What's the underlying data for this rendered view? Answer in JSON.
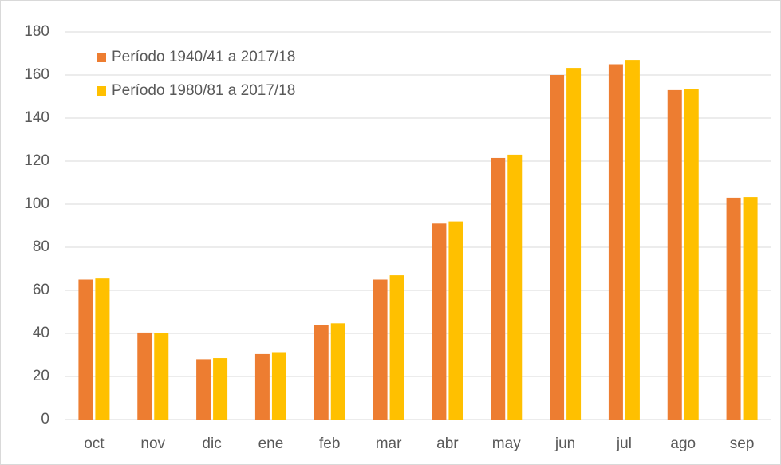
{
  "chart_data": {
    "type": "bar",
    "categories": [
      "oct",
      "nov",
      "dic",
      "ene",
      "feb",
      "mar",
      "abr",
      "may",
      "jun",
      "jul",
      "ago",
      "sep"
    ],
    "series": [
      {
        "name": "Período 1940/41 a 2017/18",
        "color": "#ed7d31",
        "values": [
          65,
          40.4,
          28,
          30.4,
          44,
          65,
          91,
          121.5,
          160,
          165,
          153,
          103
        ]
      },
      {
        "name": "Período 1980/81 a 2017/18",
        "color": "#ffc000",
        "values": [
          65.5,
          40.3,
          28.5,
          31.3,
          44.7,
          67,
          92,
          123,
          163.3,
          167,
          153.7,
          103.3
        ]
      }
    ],
    "ylim": [
      0,
      180
    ],
    "yticks": [
      0,
      20,
      40,
      60,
      80,
      100,
      120,
      140,
      160,
      180
    ],
    "grid": true,
    "legend": "top-left"
  }
}
